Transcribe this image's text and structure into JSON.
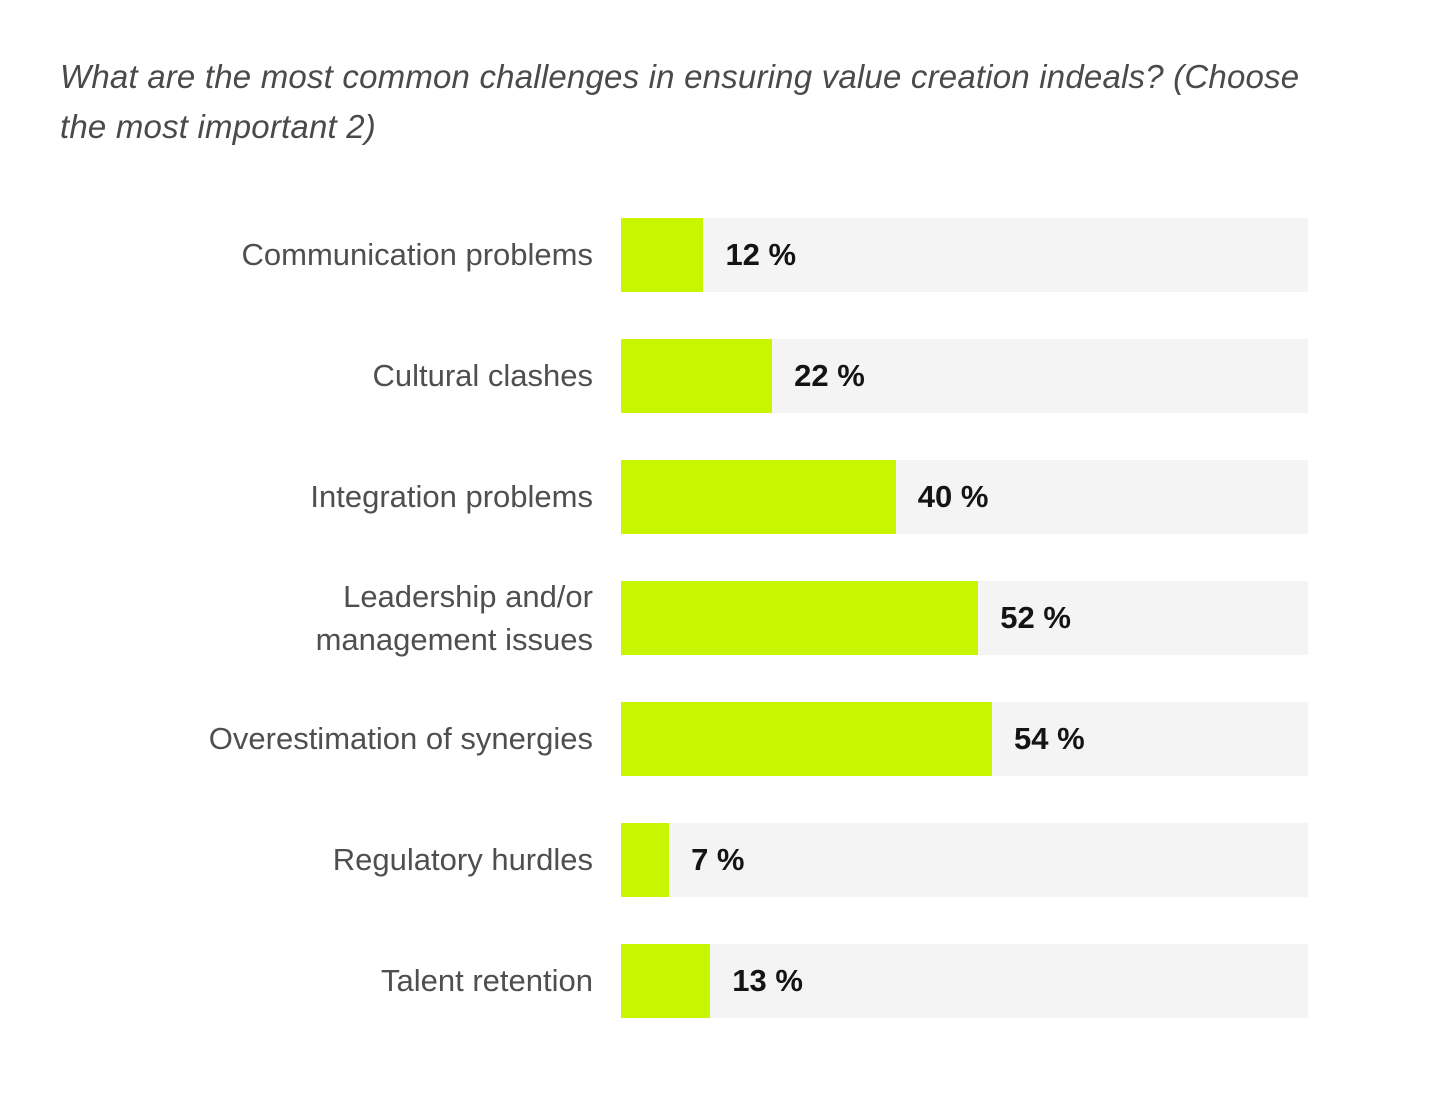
{
  "title": {
    "text": "What are the most common challenges in ensuring value creation indeals? (Choose the most important 2)",
    "lines": [
      "What are the most common challenges in ensuring value creation indeals? (Choose",
      "the most important 2)"
    ]
  },
  "colors": {
    "accent": "#C8F500",
    "track": "#F4F4F4",
    "title_text": "#4A4A4A",
    "label_text": "#4F4F4F",
    "value_text": "#141414",
    "background": "#FFFFFF"
  },
  "chart_data": {
    "type": "bar",
    "orientation": "horizontal",
    "title": "What are the most common challenges in ensuring value creation indeals? (Choose the most important 2)",
    "categories": [
      "Communication problems",
      "Cultural clashes",
      "Integration problems",
      "Leadership and/or\nmanagement issues",
      "Overestimation of synergies",
      "Regulatory hurdles",
      "Talent retention"
    ],
    "values": [
      12,
      22,
      40,
      52,
      54,
      7,
      13
    ],
    "value_labels": [
      "12 %",
      "22 %",
      "40 %",
      "52 %",
      "54 %",
      "7 %",
      "13 %"
    ],
    "xlabel": "",
    "ylabel": "",
    "xlim": [
      0,
      100
    ],
    "grid": false,
    "legend": false
  }
}
